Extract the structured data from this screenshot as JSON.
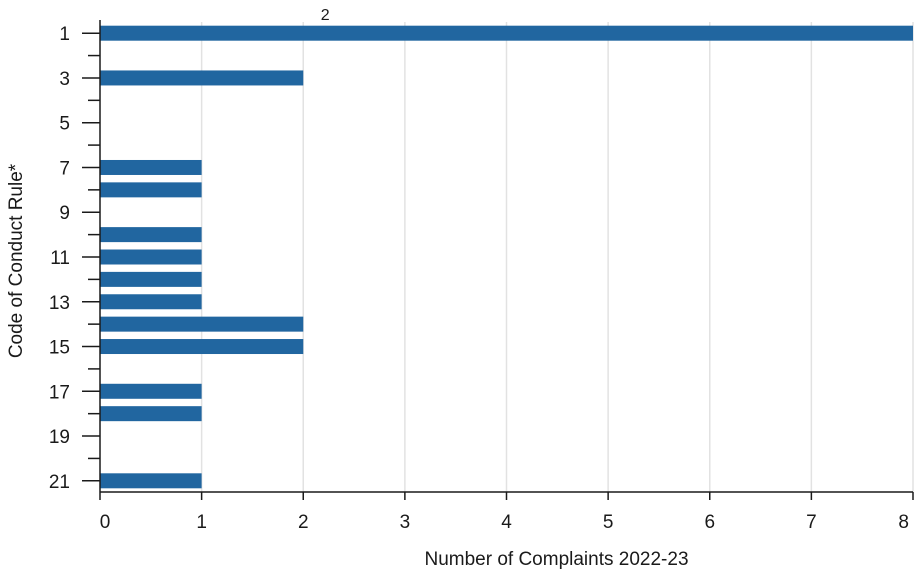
{
  "chart_data": {
    "type": "bar",
    "orientation": "horizontal",
    "title": "",
    "xlabel": "Number of Complaints 2022-23",
    "ylabel": "Code of Conduct Rule*",
    "categories": [
      1,
      2,
      3,
      4,
      5,
      6,
      7,
      8,
      9,
      10,
      11,
      12,
      13,
      14,
      15,
      16,
      17,
      18,
      19,
      20,
      21
    ],
    "values": [
      8,
      0,
      2,
      0,
      0,
      0,
      1,
      1,
      0,
      1,
      1,
      1,
      1,
      2,
      2,
      0,
      1,
      1,
      0,
      0,
      1
    ],
    "x_ticks": [
      0,
      1,
      2,
      3,
      4,
      5,
      6,
      7,
      8
    ],
    "y_tick_labels": [
      1,
      3,
      5,
      7,
      9,
      11,
      13,
      15,
      17,
      19,
      21
    ],
    "xlim": [
      0,
      8
    ],
    "ylim": [
      0.5,
      21.5
    ],
    "grid": "vertical",
    "legend": "none",
    "annotations": [
      {
        "text": "2"
      }
    ],
    "colors": {
      "bar": "#2166a0",
      "grid": "#e2e2e2",
      "axis": "#1a1a1a"
    }
  }
}
